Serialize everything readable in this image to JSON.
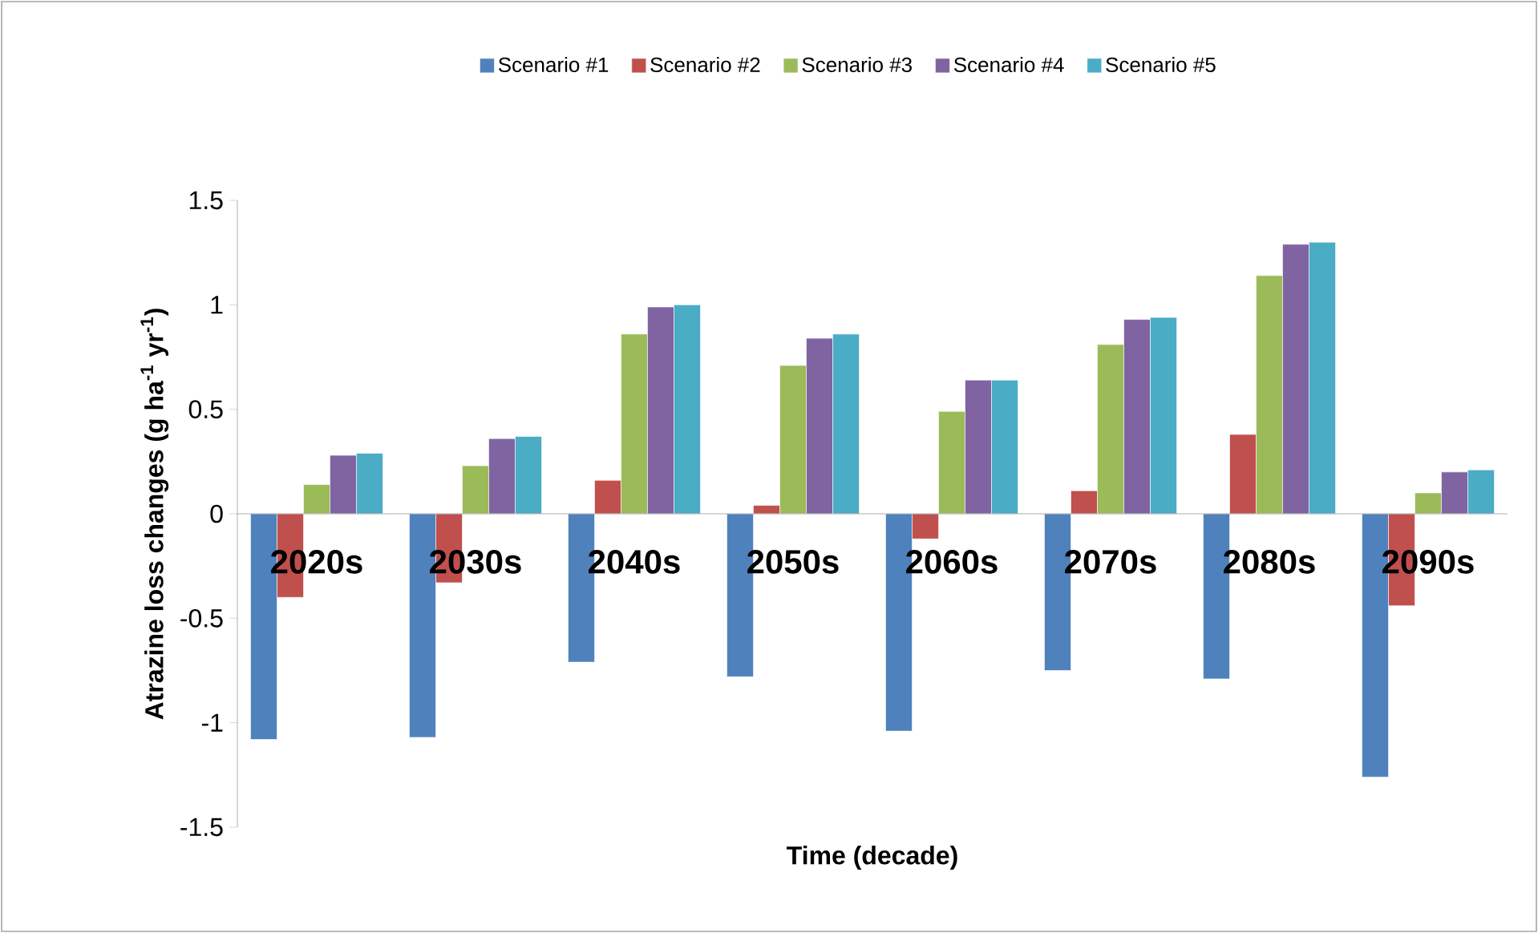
{
  "chart_data": {
    "type": "bar",
    "xlabel": "Time (decade)",
    "ylabel": "Atrazine loss changes (g ha$^{-1}$  yr$^{-1}$)",
    "categories": [
      "2020s",
      "2030s",
      "2040s",
      "2050s",
      "2060s",
      "2070s",
      "2080s",
      "2090s"
    ],
    "series": [
      {
        "name": "Scenario #1",
        "color": "#4f81bd",
        "values": [
          -1.08,
          -1.07,
          -0.71,
          -0.78,
          -1.04,
          -0.75,
          -0.79,
          -1.26
        ]
      },
      {
        "name": "Scenario #2",
        "color": "#c0504d",
        "values": [
          -0.4,
          -0.33,
          0.16,
          0.04,
          -0.12,
          0.11,
          0.38,
          -0.44
        ]
      },
      {
        "name": "Scenario #3",
        "color": "#9bbb59",
        "values": [
          0.14,
          0.23,
          0.86,
          0.71,
          0.49,
          0.81,
          1.14,
          0.1
        ]
      },
      {
        "name": "Scenario #4",
        "color": "#8064a2",
        "values": [
          0.28,
          0.36,
          0.99,
          0.84,
          0.64,
          0.93,
          1.29,
          0.2
        ]
      },
      {
        "name": "Scenario #5",
        "color": "#4bacc6",
        "values": [
          0.29,
          0.37,
          1.0,
          0.86,
          0.64,
          0.94,
          1.3,
          0.21
        ]
      }
    ],
    "ylim": [
      -1.5,
      1.5
    ],
    "yticks": [
      -1.5,
      -1,
      -0.5,
      0,
      0.5,
      1,
      1.5
    ],
    "grid": false,
    "legend": "top"
  }
}
